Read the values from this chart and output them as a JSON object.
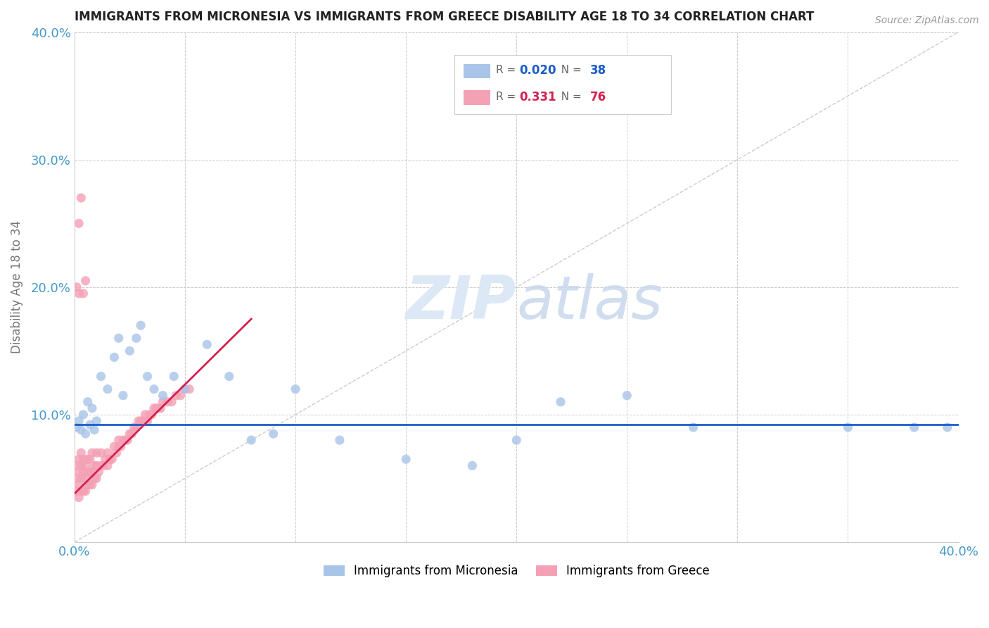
{
  "title": "IMMIGRANTS FROM MICRONESIA VS IMMIGRANTS FROM GREECE DISABILITY AGE 18 TO 34 CORRELATION CHART",
  "source_text": "Source: ZipAtlas.com",
  "ylabel": "Disability Age 18 to 34",
  "xlim": [
    0.0,
    0.4
  ],
  "ylim": [
    0.0,
    0.4
  ],
  "micronesia_R": 0.02,
  "micronesia_N": 38,
  "greece_R": 0.331,
  "greece_N": 76,
  "micronesia_color": "#a8c4e8",
  "greece_color": "#f4a0b5",
  "micronesia_line_color": "#1a5dc8",
  "greece_line_color": "#d42050",
  "title_color": "#222222",
  "axis_label_color": "#777777",
  "tick_color": "#4499cc",
  "grid_color": "#cccccc",
  "micronesia_x": [
    0.001,
    0.002,
    0.003,
    0.004,
    0.005,
    0.006,
    0.007,
    0.008,
    0.009,
    0.01,
    0.012,
    0.015,
    0.018,
    0.02,
    0.022,
    0.025,
    0.028,
    0.03,
    0.033,
    0.036,
    0.04,
    0.045,
    0.05,
    0.06,
    0.07,
    0.08,
    0.09,
    0.1,
    0.12,
    0.15,
    0.18,
    0.2,
    0.22,
    0.25,
    0.28,
    0.35,
    0.38,
    0.395
  ],
  "micronesia_y": [
    0.09,
    0.095,
    0.088,
    0.1,
    0.085,
    0.11,
    0.092,
    0.105,
    0.088,
    0.095,
    0.13,
    0.12,
    0.145,
    0.16,
    0.115,
    0.15,
    0.16,
    0.17,
    0.13,
    0.12,
    0.115,
    0.13,
    0.12,
    0.155,
    0.13,
    0.08,
    0.085,
    0.12,
    0.08,
    0.065,
    0.06,
    0.08,
    0.11,
    0.115,
    0.09,
    0.09,
    0.09,
    0.09
  ],
  "greece_x": [
    0.001,
    0.001,
    0.001,
    0.002,
    0.002,
    0.002,
    0.002,
    0.003,
    0.003,
    0.003,
    0.003,
    0.004,
    0.004,
    0.004,
    0.005,
    0.005,
    0.005,
    0.006,
    0.006,
    0.006,
    0.007,
    0.007,
    0.007,
    0.008,
    0.008,
    0.008,
    0.009,
    0.009,
    0.01,
    0.01,
    0.01,
    0.011,
    0.012,
    0.012,
    0.013,
    0.014,
    0.015,
    0.015,
    0.016,
    0.017,
    0.018,
    0.019,
    0.02,
    0.02,
    0.021,
    0.022,
    0.023,
    0.024,
    0.025,
    0.026,
    0.027,
    0.028,
    0.029,
    0.03,
    0.031,
    0.032,
    0.033,
    0.034,
    0.035,
    0.036,
    0.037,
    0.038,
    0.039,
    0.04,
    0.042,
    0.044,
    0.046,
    0.048,
    0.05,
    0.052,
    0.001,
    0.002,
    0.002,
    0.003,
    0.004,
    0.005
  ],
  "greece_y": [
    0.04,
    0.05,
    0.06,
    0.035,
    0.045,
    0.055,
    0.065,
    0.04,
    0.05,
    0.06,
    0.07,
    0.04,
    0.055,
    0.065,
    0.04,
    0.05,
    0.06,
    0.045,
    0.055,
    0.065,
    0.045,
    0.055,
    0.065,
    0.045,
    0.055,
    0.07,
    0.05,
    0.06,
    0.05,
    0.06,
    0.07,
    0.055,
    0.06,
    0.07,
    0.06,
    0.065,
    0.06,
    0.07,
    0.065,
    0.065,
    0.075,
    0.07,
    0.075,
    0.08,
    0.075,
    0.08,
    0.08,
    0.08,
    0.085,
    0.085,
    0.09,
    0.09,
    0.095,
    0.095,
    0.095,
    0.1,
    0.095,
    0.1,
    0.1,
    0.105,
    0.105,
    0.105,
    0.105,
    0.11,
    0.11,
    0.11,
    0.115,
    0.115,
    0.12,
    0.12,
    0.2,
    0.25,
    0.195,
    0.27,
    0.195,
    0.205
  ]
}
